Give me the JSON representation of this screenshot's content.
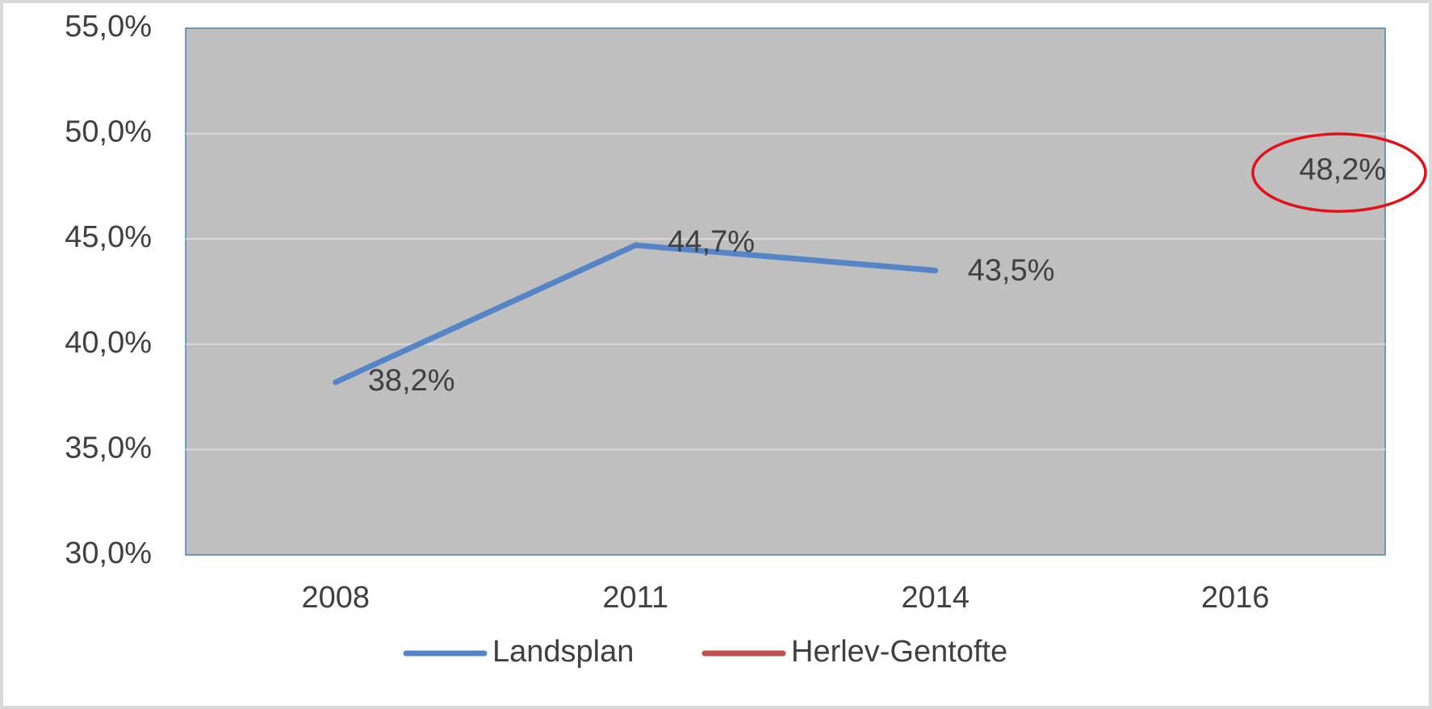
{
  "chart_data": {
    "type": "line",
    "categories": [
      "2008",
      "2011",
      "2014",
      "2016"
    ],
    "series": [
      {
        "name": "Landsplan",
        "color": "#5585c7",
        "values": [
          38.2,
          44.7,
          43.5,
          null
        ],
        "value_labels": [
          "38,2%",
          "44,7%",
          "43,5%",
          null
        ]
      },
      {
        "name": "Herlev-Gentofte",
        "color": "#c0504d",
        "values": [
          null,
          null,
          null,
          48.2
        ],
        "value_labels": [
          null,
          null,
          null,
          "48,2%"
        ]
      }
    ],
    "ylim": [
      30,
      55
    ],
    "yticks": [
      {
        "value": 30,
        "label": "30,0%"
      },
      {
        "value": 35,
        "label": "35,0%"
      },
      {
        "value": 40,
        "label": "40,0%"
      },
      {
        "value": 45,
        "label": "45,0%"
      },
      {
        "value": 50,
        "label": "50,0%"
      },
      {
        "value": 55,
        "label": "55,0%"
      }
    ],
    "grid": true,
    "legend": "bottom"
  }
}
